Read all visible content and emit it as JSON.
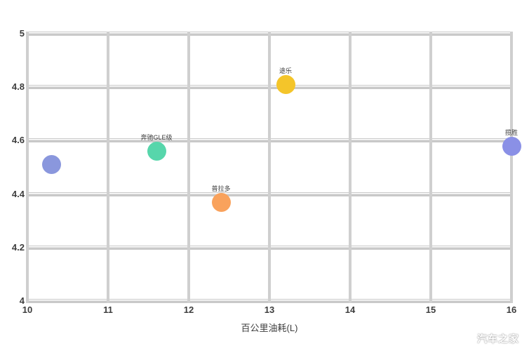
{
  "chart_data": {
    "type": "scatter",
    "title": "",
    "xlabel": "百公里油耗(L)",
    "ylabel": "",
    "xlim": [
      10,
      16
    ],
    "ylim": [
      4,
      5
    ],
    "x_ticks": [
      "10",
      "11",
      "12",
      "13",
      "14",
      "15",
      "16"
    ],
    "y_ticks": [
      "5",
      "4.8",
      "4.6",
      "4.4",
      "4.2",
      "4"
    ],
    "grid": true,
    "legend": false,
    "dot_diameter": 27,
    "points": [
      {
        "label": "",
        "x": 10.3,
        "y": 4.51,
        "color": "#8a97dd"
      },
      {
        "label": "奔驰GLE级",
        "x": 11.6,
        "y": 4.56,
        "color": "#57d6ab"
      },
      {
        "label": "普拉多",
        "x": 12.4,
        "y": 4.37,
        "color": "#f9a25c"
      },
      {
        "label": "途乐",
        "x": 13.2,
        "y": 4.81,
        "color": "#f4c52a"
      },
      {
        "label": "揽胜",
        "x": 16.0,
        "y": 4.58,
        "color": "#8a90e6"
      }
    ],
    "grid_color": "#cccccc",
    "tick_color": "#3d3d3d",
    "point_label_color": "#3c3c3c"
  },
  "watermark": {
    "text": "汽车之家"
  }
}
